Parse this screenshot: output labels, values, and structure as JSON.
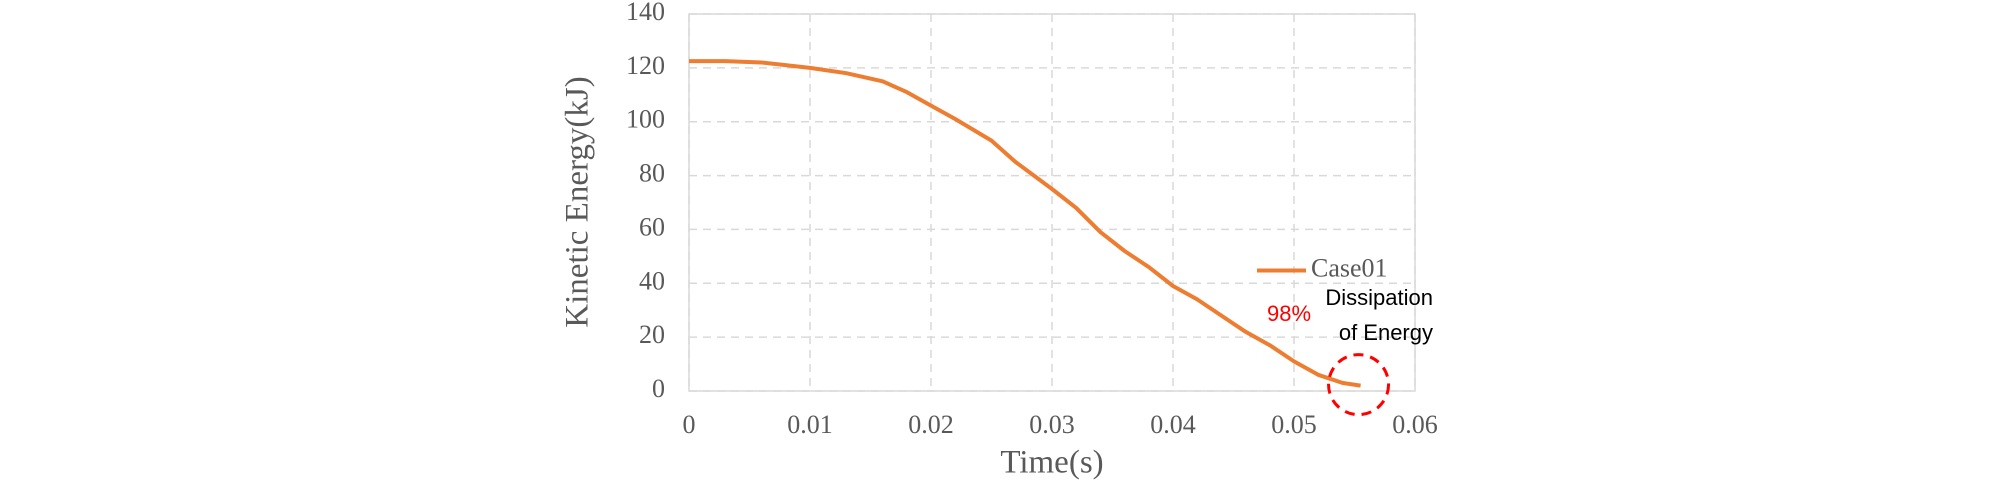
{
  "chart_data": {
    "type": "line",
    "x_label": "Time(s)",
    "y_label": "Kinetic Energy(kJ)",
    "x": [
      0,
      0.003,
      0.006,
      0.01,
      0.013,
      0.016,
      0.018,
      0.02,
      0.022,
      0.025,
      0.027,
      0.03,
      0.032,
      0.034,
      0.036,
      0.038,
      0.04,
      0.042,
      0.044,
      0.046,
      0.048,
      0.05,
      0.052,
      0.054,
      0.0555
    ],
    "series": [
      {
        "name": "Case01",
        "color": "#ed7d31",
        "values": [
          122.5,
          122.5,
          122,
          120,
          118,
          115,
          111,
          106,
          101,
          93,
          85,
          75,
          68,
          59,
          52,
          46,
          39,
          34,
          28,
          22,
          17,
          11,
          6,
          3,
          2
        ]
      }
    ],
    "xlim": [
      0,
      0.06
    ],
    "xticks": [
      0,
      0.01,
      0.02,
      0.03,
      0.04,
      0.05,
      0.06
    ],
    "ylim": [
      0,
      140
    ],
    "yticks": [
      0,
      20,
      40,
      60,
      80,
      100,
      120,
      140
    ],
    "grid": true,
    "legend_position": "right",
    "annotations": {
      "percent": "98%",
      "note": [
        "Dissipation",
        "of Energy"
      ],
      "highlight_color": "#ff0000"
    }
  }
}
